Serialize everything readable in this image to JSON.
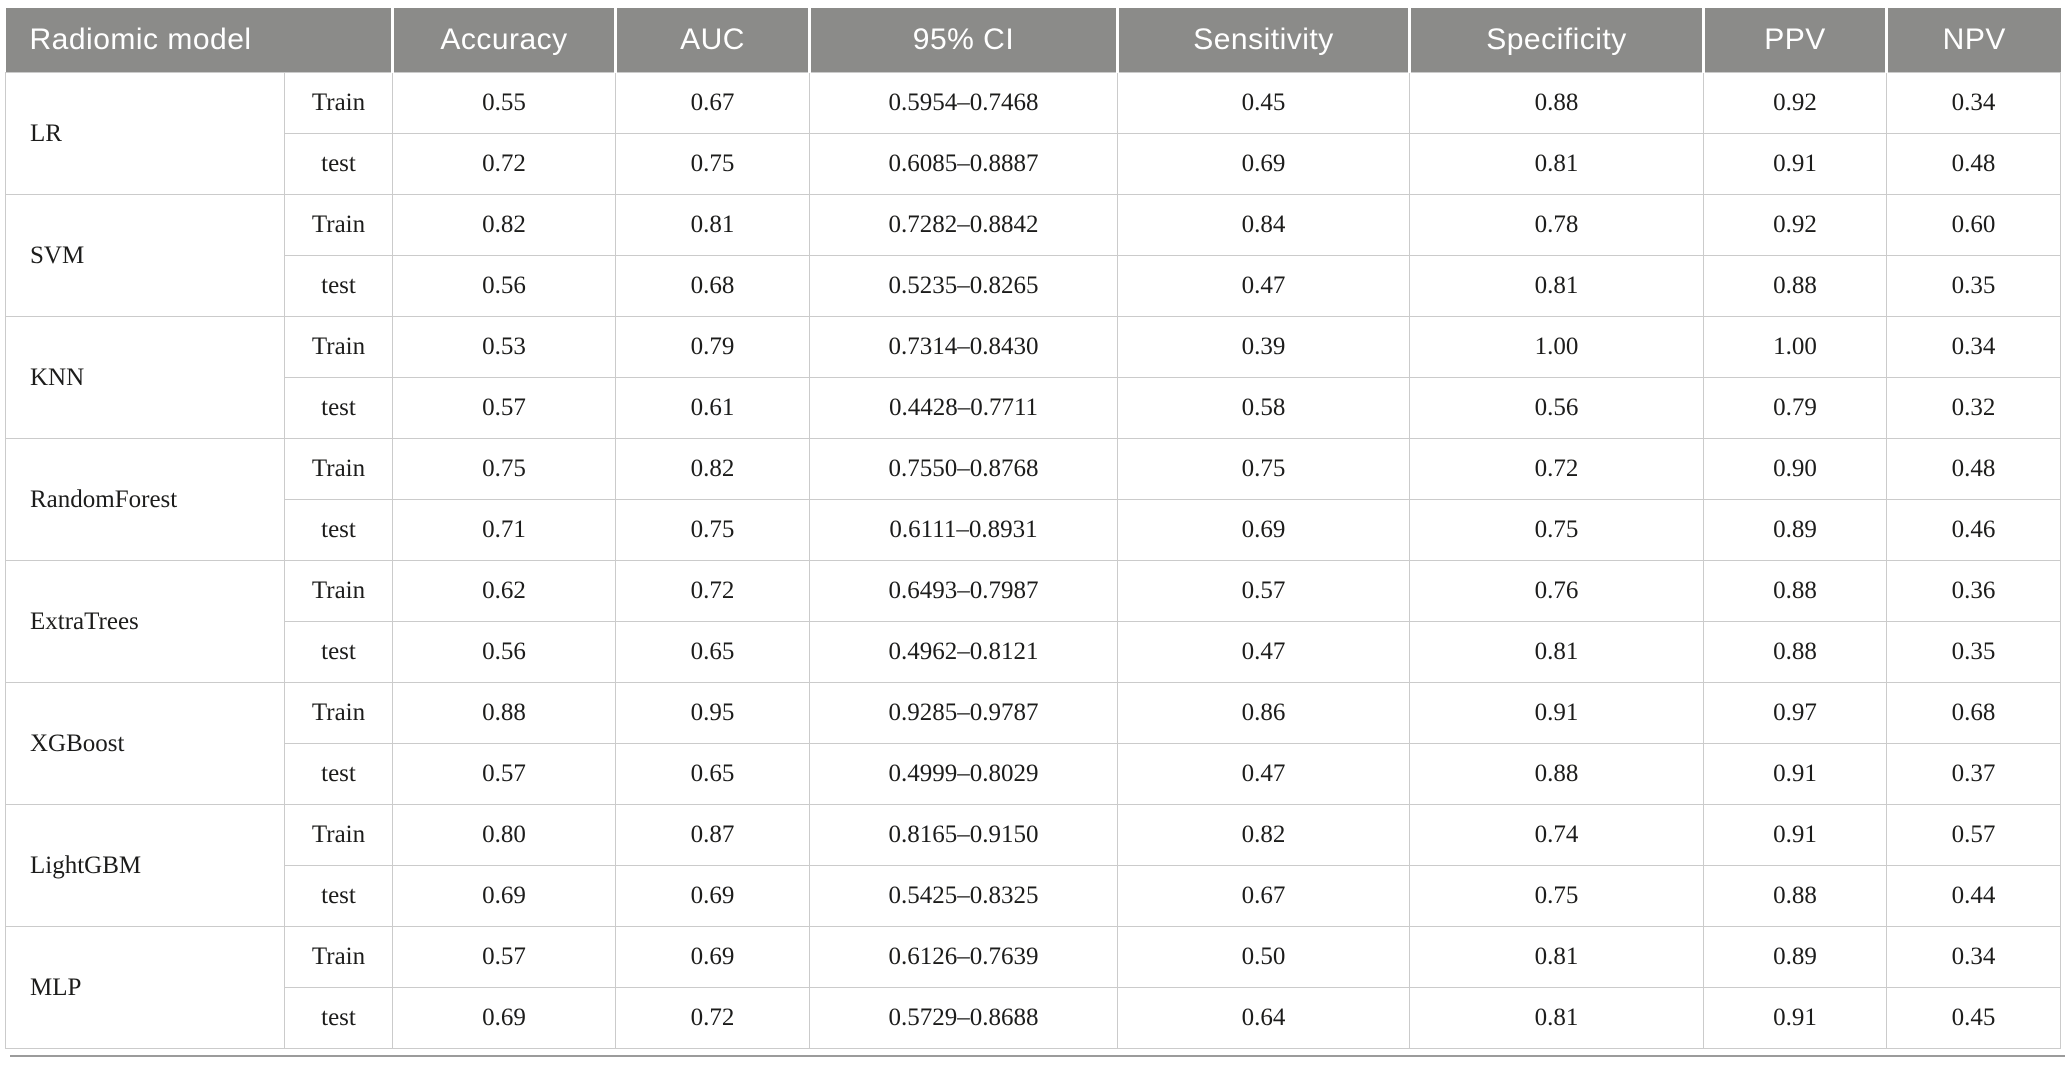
{
  "colors": {
    "header_bg": "#8b8b89",
    "header_text": "#ffffff",
    "cell_border": "#cbcbcb",
    "body_text": "#1c1c1b",
    "bottom_rule": "#9b9b9b"
  },
  "chart_data": {
    "type": "table",
    "columns": [
      "Radiomic model",
      "Accuracy",
      "AUC",
      "95% CI",
      "Sensitivity",
      "Specificity",
      "PPV",
      "NPV"
    ],
    "groups": [
      {
        "model": "LR",
        "rows": [
          {
            "split": "Train",
            "accuracy": "0.55",
            "auc": "0.67",
            "ci": "0.5954–0.7468",
            "sensitivity": "0.45",
            "specificity": "0.88",
            "ppv": "0.92",
            "npv": "0.34"
          },
          {
            "split": "test",
            "accuracy": "0.72",
            "auc": "0.75",
            "ci": "0.6085–0.8887",
            "sensitivity": "0.69",
            "specificity": "0.81",
            "ppv": "0.91",
            "npv": "0.48"
          }
        ]
      },
      {
        "model": "SVM",
        "rows": [
          {
            "split": "Train",
            "accuracy": "0.82",
            "auc": "0.81",
            "ci": "0.7282–0.8842",
            "sensitivity": "0.84",
            "specificity": "0.78",
            "ppv": "0.92",
            "npv": "0.60"
          },
          {
            "split": "test",
            "accuracy": "0.56",
            "auc": "0.68",
            "ci": "0.5235–0.8265",
            "sensitivity": "0.47",
            "specificity": "0.81",
            "ppv": "0.88",
            "npv": "0.35"
          }
        ]
      },
      {
        "model": "KNN",
        "rows": [
          {
            "split": "Train",
            "accuracy": "0.53",
            "auc": "0.79",
            "ci": "0.7314–0.8430",
            "sensitivity": "0.39",
            "specificity": "1.00",
            "ppv": "1.00",
            "npv": "0.34"
          },
          {
            "split": "test",
            "accuracy": "0.57",
            "auc": "0.61",
            "ci": "0.4428–0.7711",
            "sensitivity": "0.58",
            "specificity": "0.56",
            "ppv": "0.79",
            "npv": "0.32"
          }
        ]
      },
      {
        "model": "RandomForest",
        "rows": [
          {
            "split": "Train",
            "accuracy": "0.75",
            "auc": "0.82",
            "ci": "0.7550–0.8768",
            "sensitivity": "0.75",
            "specificity": "0.72",
            "ppv": "0.90",
            "npv": "0.48"
          },
          {
            "split": "test",
            "accuracy": "0.71",
            "auc": "0.75",
            "ci": "0.6111–0.8931",
            "sensitivity": "0.69",
            "specificity": "0.75",
            "ppv": "0.89",
            "npv": "0.46"
          }
        ]
      },
      {
        "model": "ExtraTrees",
        "rows": [
          {
            "split": "Train",
            "accuracy": "0.62",
            "auc": "0.72",
            "ci": "0.6493–0.7987",
            "sensitivity": "0.57",
            "specificity": "0.76",
            "ppv": "0.88",
            "npv": "0.36"
          },
          {
            "split": "test",
            "accuracy": "0.56",
            "auc": "0.65",
            "ci": "0.4962–0.8121",
            "sensitivity": "0.47",
            "specificity": "0.81",
            "ppv": "0.88",
            "npv": "0.35"
          }
        ]
      },
      {
        "model": "XGBoost",
        "rows": [
          {
            "split": "Train",
            "accuracy": "0.88",
            "auc": "0.95",
            "ci": "0.9285–0.9787",
            "sensitivity": "0.86",
            "specificity": "0.91",
            "ppv": "0.97",
            "npv": "0.68"
          },
          {
            "split": "test",
            "accuracy": "0.57",
            "auc": "0.65",
            "ci": "0.4999–0.8029",
            "sensitivity": "0.47",
            "specificity": "0.88",
            "ppv": "0.91",
            "npv": "0.37"
          }
        ]
      },
      {
        "model": "LightGBM",
        "rows": [
          {
            "split": "Train",
            "accuracy": "0.80",
            "auc": "0.87",
            "ci": "0.8165–0.9150",
            "sensitivity": "0.82",
            "specificity": "0.74",
            "ppv": "0.91",
            "npv": "0.57"
          },
          {
            "split": "test",
            "accuracy": "0.69",
            "auc": "0.69",
            "ci": "0.5425–0.8325",
            "sensitivity": "0.67",
            "specificity": "0.75",
            "ppv": "0.88",
            "npv": "0.44"
          }
        ]
      },
      {
        "model": "MLP",
        "rows": [
          {
            "split": "Train",
            "accuracy": "0.57",
            "auc": "0.69",
            "ci": "0.6126–0.7639",
            "sensitivity": "0.50",
            "specificity": "0.81",
            "ppv": "0.89",
            "npv": "0.34"
          },
          {
            "split": "test",
            "accuracy": "0.69",
            "auc": "0.72",
            "ci": "0.5729–0.8688",
            "sensitivity": "0.64",
            "specificity": "0.81",
            "ppv": "0.91",
            "npv": "0.45"
          }
        ]
      }
    ]
  }
}
